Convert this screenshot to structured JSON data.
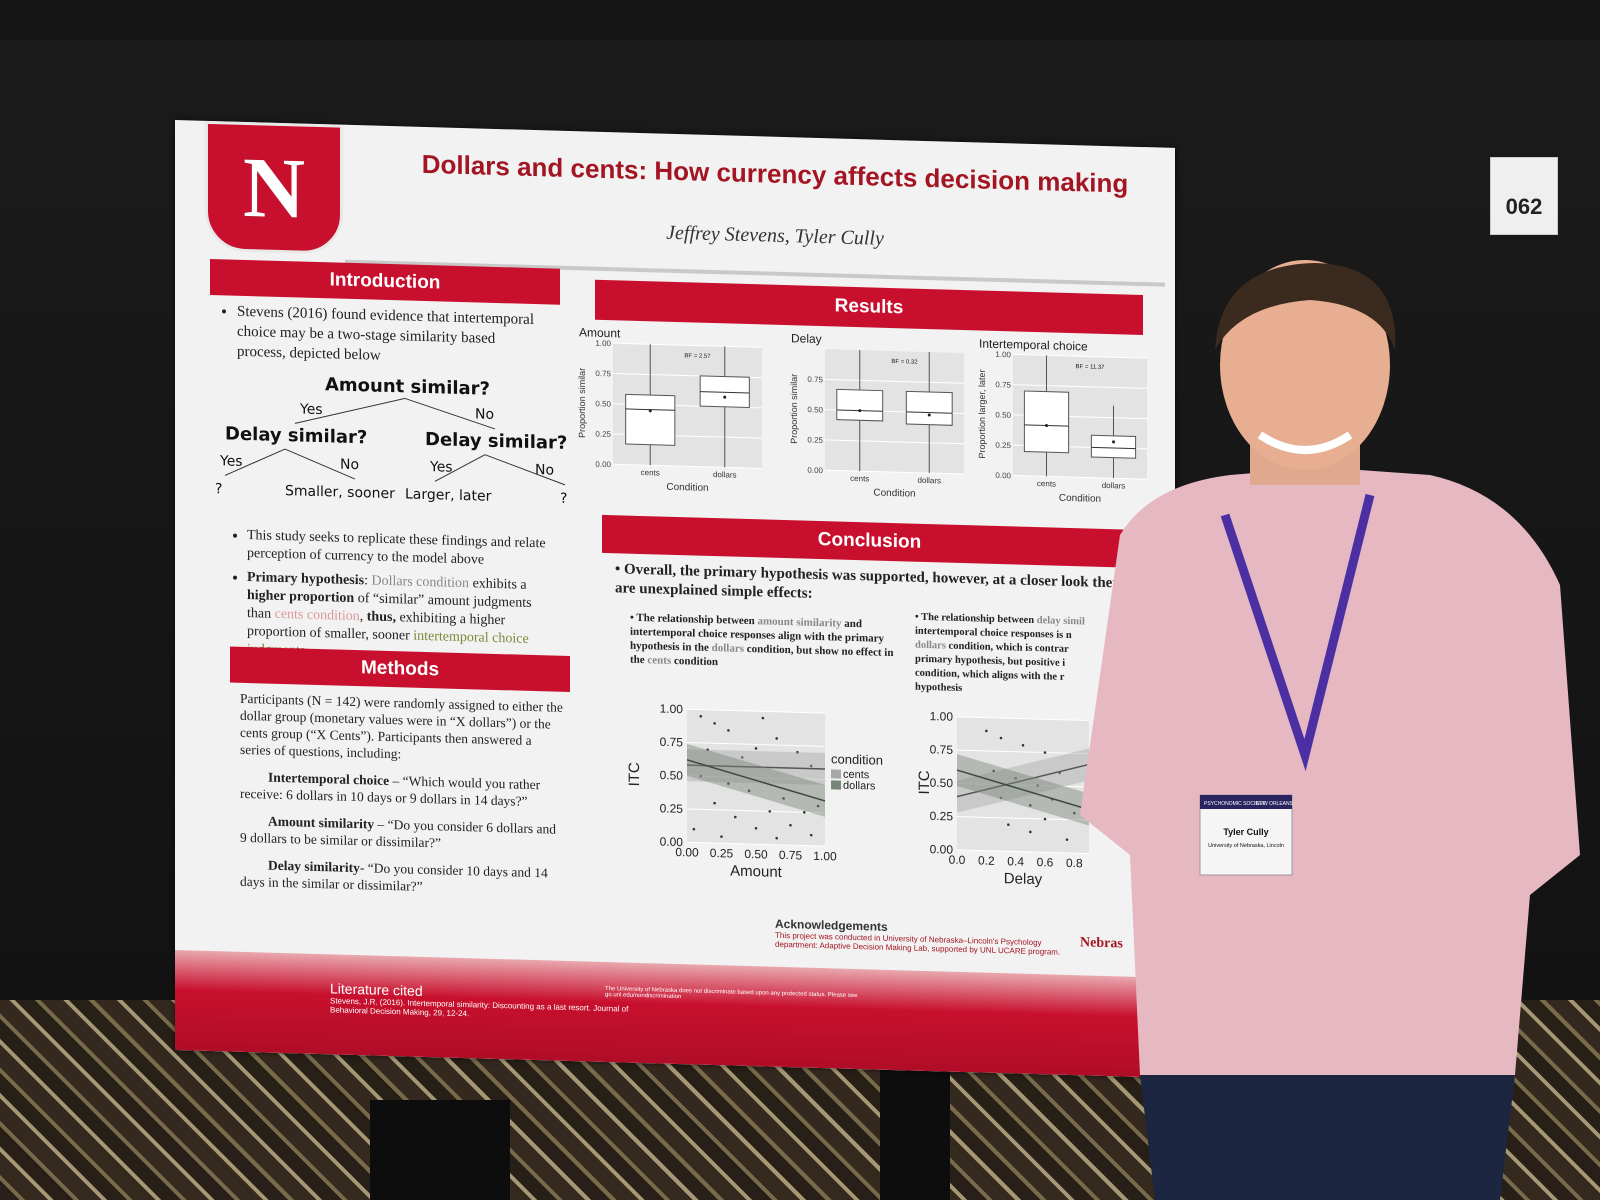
{
  "booth_number": "062",
  "poster": {
    "logo_letter": "N",
    "title": "Dollars and cents: How currency affects decision making",
    "authors": "Jeffrey Stevens, Tyler Cully",
    "sections": {
      "introduction": "Introduction",
      "methods": "Methods",
      "results": "Results",
      "conclusion": "Conclusion"
    },
    "intro_bullet_1": "Stevens (2016) found evidence that intertemporal choice may be a two-stage similarity based process, depicted below",
    "tree": {
      "root": "Amount similar?",
      "yes": "Yes",
      "no": "No",
      "left": "Delay similar?",
      "right": "Delay similar?",
      "q": "?",
      "ss": "Smaller, sooner",
      "ll": "Larger, later"
    },
    "intro_bullet_2": "This study seeks to replicate these findings and relate perception of currency to the model above",
    "intro_bullet_3": {
      "lead": "Primary hypothesis",
      "a": ": ",
      "dollars": "Dollars condition",
      "b": " exhibits a ",
      "bold1": "higher proportion",
      "c": " of “similar” amount judgments than ",
      "cents": "cents condition",
      "d": ", ",
      "bold2": "thus,",
      "e": " exhibiting a higher proportion of smaller, sooner ",
      "itc": "intertemporal choice judgments."
    },
    "methods": {
      "p1": "Participants (N = 142) were randomly assigned to either the dollar group (monetary values were in “X dollars”) or the cents group (“X Cents”). Participants then answered a series of questions, including:",
      "q1_label": "Intertemporal choice",
      "q1": " – “Which would you rather receive: 6 dollars in 10 days or 9 dollars in 14 days?”",
      "q2_label": "Amount similarity",
      "q2": " – “Do you consider 6 dollars and 9 dollars to be similar or dissimilar?”",
      "q3_label": "Delay similarity",
      "q3": "- “Do you consider 10 days and 14 days in the similar or dissimilar?”"
    },
    "conclusion": {
      "main": "Overall, the primary hypothesis was supported, however, at a closer look there are unexplained simple effects:",
      "b1_pre": "The relationship between ",
      "b1_amt": "amount similarity",
      "b1_mid": " and intertemporal choice responses align with the primary hypothesis in the ",
      "b1_dol": "dollars",
      "b1_mid2": " condition, but show no effect in the ",
      "b1_cen": "cents",
      "b1_end": " condition",
      "b2_pre": "The relationship between ",
      "b2_del": "delay simil",
      "b2_a": "intertemporal choice responses is n",
      "b2_dol": "dollars",
      "b2_b": " condition, which is contrar",
      "b2_c": "primary hypothesis, but positive i",
      "b2_d": "condition, which aligns with the r",
      "b2_e": "hypothesis"
    },
    "acknowledgements_title": "Acknowledgements",
    "acknowledgements_text": "This project was conducted in University of Nebraska–Lincoln's Psychology department: Adaptive Decision Making Lab, supported by UNL UCARE program.",
    "literature_title": "Literature cited",
    "literature_text": "Stevens, J.R. (2016). Intertemporal similarity: Discounting as a last resort. Journal of Behavioral Decision Making, 29, 12-24.",
    "footer_note": "The University of Nebraska does not discriminate based upon any protected status. Please see go.unl.edu/nondiscrimination",
    "footer_brand": "Nebras"
  },
  "badge": {
    "event": "PSYCHONOMIC SOCIETY",
    "city": "NEW ORLEANS",
    "name": "Tyler Cully",
    "affil": "University of Nebraska, Lincoln"
  },
  "chart_data": [
    {
      "type": "box",
      "title": "Amount",
      "xlabel": "Condition",
      "ylabel": "Proportion similar",
      "categories": [
        "cents",
        "dollars"
      ],
      "ylim": [
        0,
        1
      ],
      "yticks": [
        "0.00",
        "0.25",
        "0.50",
        "0.75",
        "1.00"
      ],
      "annotation": "BF = 2.57",
      "boxes": [
        {
          "q1": 0.17,
          "median": 0.46,
          "q3": 0.58,
          "mean": 0.45,
          "min": 0.0,
          "max": 1.0
        },
        {
          "q1": 0.5,
          "median": 0.62,
          "q3": 0.75,
          "mean": 0.58,
          "min": 0.0,
          "max": 1.0
        }
      ]
    },
    {
      "type": "box",
      "title": "Delay",
      "xlabel": "Condition",
      "ylabel": "Proportion similar",
      "categories": [
        "cents",
        "dollars"
      ],
      "ylim": [
        0,
        1
      ],
      "yticks": [
        "0.00",
        "0.25",
        "0.50",
        "0.75"
      ],
      "annotation": "BF = 0.32",
      "boxes": [
        {
          "q1": 0.42,
          "median": 0.5,
          "q3": 0.67,
          "mean": 0.5,
          "min": 0.0,
          "max": 1.0
        },
        {
          "q1": 0.4,
          "median": 0.5,
          "q3": 0.67,
          "mean": 0.48,
          "min": 0.0,
          "max": 1.0
        }
      ]
    },
    {
      "type": "box",
      "title": "Intertemporal choice",
      "xlabel": "Condition",
      "ylabel": "Proportion larger, later",
      "categories": [
        "cents",
        "dollars"
      ],
      "ylim": [
        0,
        1
      ],
      "yticks": [
        "0.00",
        "0.25",
        "0.50",
        "0.75",
        "1.00"
      ],
      "annotation": "BF = 11.37",
      "boxes": [
        {
          "q1": 0.2,
          "median": 0.42,
          "q3": 0.7,
          "mean": 0.42,
          "min": 0.0,
          "max": 1.0
        },
        {
          "q1": 0.17,
          "median": 0.25,
          "q3": 0.35,
          "mean": 0.3,
          "min": 0.0,
          "max": 0.6
        }
      ]
    },
    {
      "type": "scatter",
      "xlabel": "Amount",
      "ylabel": "ITC",
      "xticks": [
        "0.00",
        "0.25",
        "0.50",
        "0.75",
        "1.00"
      ],
      "yticks": [
        "0.00",
        "0.25",
        "0.50",
        "0.75",
        "1.00"
      ],
      "legend_title": "condition",
      "legend_position": "right",
      "series": [
        {
          "name": "cents",
          "intercept": 0.58,
          "slope": 0.0
        },
        {
          "name": "dollars",
          "intercept": 0.62,
          "slope": -0.28
        }
      ],
      "points": [
        [
          0.1,
          0.95
        ],
        [
          0.2,
          0.9
        ],
        [
          0.3,
          0.85
        ],
        [
          0.55,
          0.95
        ],
        [
          0.65,
          0.8
        ],
        [
          0.8,
          0.7
        ],
        [
          0.15,
          0.7
        ],
        [
          0.4,
          0.65
        ],
        [
          0.5,
          0.72
        ],
        [
          0.9,
          0.6
        ],
        [
          0.1,
          0.5
        ],
        [
          0.3,
          0.45
        ],
        [
          0.45,
          0.4
        ],
        [
          0.7,
          0.35
        ],
        [
          0.85,
          0.25
        ],
        [
          0.2,
          0.3
        ],
        [
          0.35,
          0.2
        ],
        [
          0.6,
          0.25
        ],
        [
          0.75,
          0.15
        ],
        [
          0.95,
          0.3
        ],
        [
          0.05,
          0.1
        ],
        [
          0.25,
          0.05
        ],
        [
          0.5,
          0.12
        ],
        [
          0.65,
          0.05
        ],
        [
          0.9,
          0.08
        ]
      ]
    },
    {
      "type": "scatter",
      "xlabel": "Delay",
      "ylabel": "ITC",
      "xticks": [
        "0.0",
        "0.2",
        "0.4",
        "0.6",
        "0.8"
      ],
      "yticks": [
        "0.00",
        "0.25",
        "0.50",
        "0.75",
        "1.00"
      ],
      "series": [
        {
          "name": "cents",
          "intercept": 0.4,
          "slope": 0.3
        },
        {
          "name": "dollars",
          "intercept": 0.6,
          "slope": -0.3
        }
      ],
      "points": [
        [
          0.2,
          0.9
        ],
        [
          0.3,
          0.85
        ],
        [
          0.45,
          0.8
        ],
        [
          0.6,
          0.75
        ],
        [
          0.25,
          0.6
        ],
        [
          0.4,
          0.55
        ],
        [
          0.55,
          0.5
        ],
        [
          0.7,
          0.6
        ],
        [
          0.3,
          0.4
        ],
        [
          0.5,
          0.35
        ],
        [
          0.65,
          0.4
        ],
        [
          0.8,
          0.3
        ],
        [
          0.35,
          0.2
        ],
        [
          0.5,
          0.15
        ],
        [
          0.6,
          0.25
        ],
        [
          0.75,
          0.1
        ]
      ]
    }
  ],
  "colors": {
    "brand_red": "#c8102e",
    "shirt": "#e6b8c2",
    "lanyard": "#4b2fa3"
  }
}
